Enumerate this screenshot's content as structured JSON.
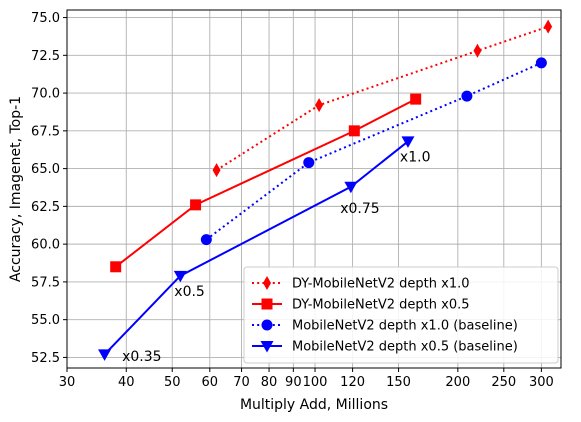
{
  "chart_data": {
    "type": "line",
    "xlabel": "Multiply Add, Millions",
    "ylabel": "Accuracy, Imagenet, Top-1",
    "x_scale": "log",
    "xlim": [
      30,
      330
    ],
    "ylim": [
      51.8,
      75.5
    ],
    "x_ticks": [
      30,
      40,
      50,
      60,
      70,
      80,
      90,
      100,
      120,
      150,
      200,
      250,
      300
    ],
    "x_tick_labels": [
      "30",
      "40",
      "50",
      "60",
      "70",
      "80",
      "90",
      "100",
      "120",
      "150",
      "200",
      "250",
      "300"
    ],
    "y_ticks": [
      52.5,
      55.0,
      57.5,
      60.0,
      62.5,
      65.0,
      67.5,
      70.0,
      72.5,
      75.0
    ],
    "y_tick_labels": [
      "52.5",
      "55.0",
      "57.5",
      "60.0",
      "62.5",
      "65.0",
      "67.5",
      "70.0",
      "72.5",
      "75.0"
    ],
    "grid": true,
    "legend_position": "bottom-right",
    "series": [
      {
        "name": "DY-MobileNetV2 depth x1.0",
        "color": "#ff0000",
        "line_style": "dotted",
        "marker": "thin-diamond",
        "x": [
          62,
          102,
          220,
          310
        ],
        "y": [
          64.9,
          69.2,
          72.8,
          74.4
        ]
      },
      {
        "name": "DY-MobileNetV2 depth x0.5",
        "color": "#ff0000",
        "line_style": "solid",
        "marker": "square",
        "x": [
          38,
          56,
          121,
          163
        ],
        "y": [
          58.5,
          62.6,
          67.5,
          69.6
        ]
      },
      {
        "name": "MobileNetV2 depth x1.0 (baseline)",
        "color": "#0000ff",
        "line_style": "dotted",
        "marker": "circle",
        "x": [
          59,
          97,
          209,
          300
        ],
        "y": [
          60.3,
          65.4,
          69.8,
          72.0
        ]
      },
      {
        "name": "MobileNetV2 depth x0.5 (baseline)",
        "color": "#0000ff",
        "line_style": "solid",
        "marker": "triangle-down",
        "x": [
          36,
          52,
          119,
          157
        ],
        "y": [
          52.7,
          57.9,
          63.8,
          66.8
        ]
      }
    ],
    "annotations": [
      {
        "text": "x0.35",
        "x": 39.2,
        "y": 52.6
      },
      {
        "text": "x0.5",
        "x": 50.5,
        "y": 56.9
      },
      {
        "text": "x0.75",
        "x": 113,
        "y": 62.4
      },
      {
        "text": "x1.0",
        "x": 151,
        "y": 65.8
      }
    ]
  }
}
